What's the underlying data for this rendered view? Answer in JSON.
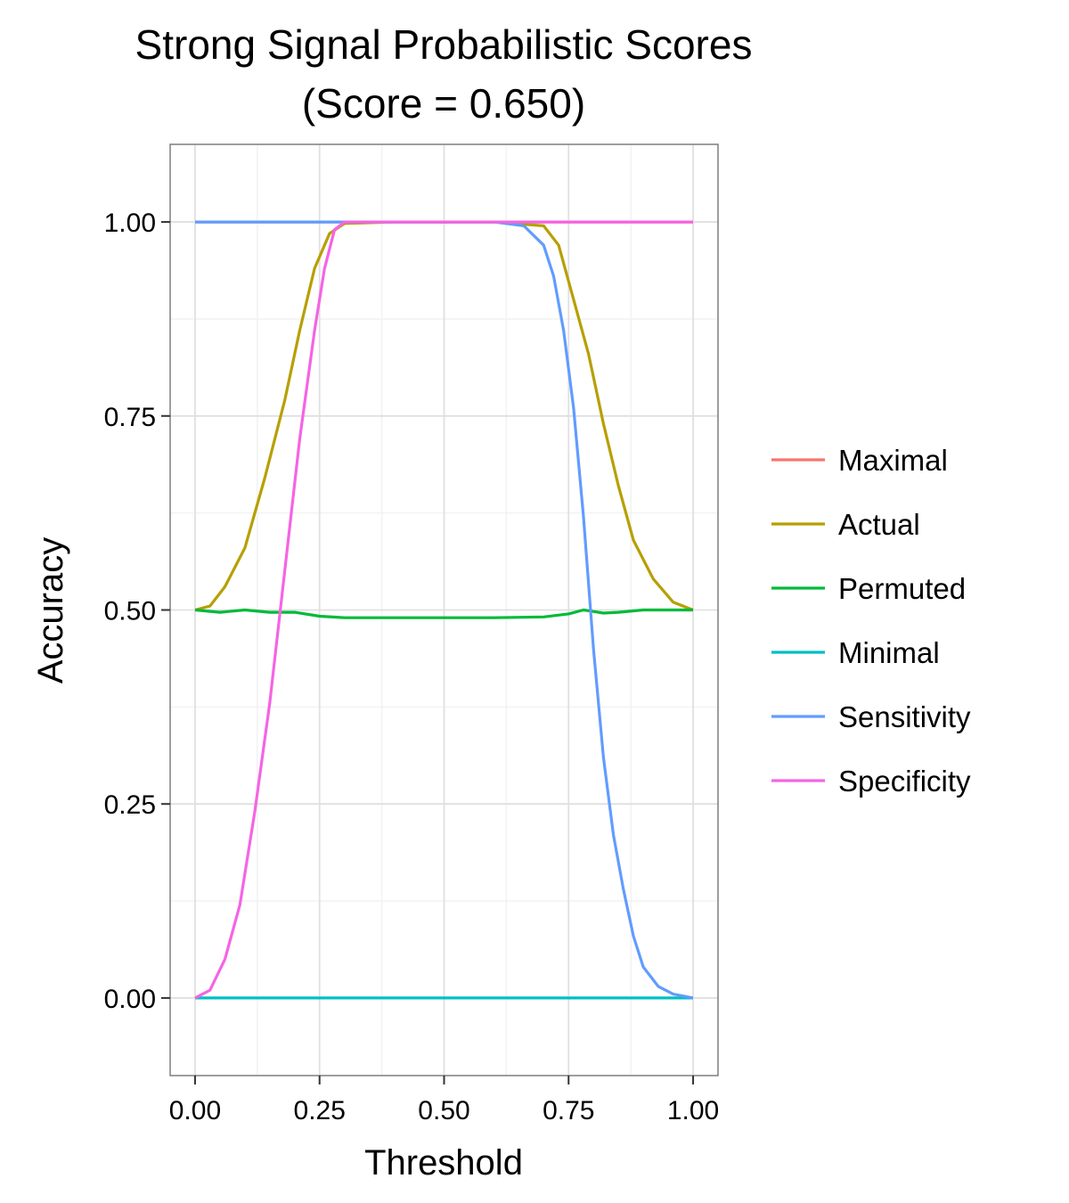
{
  "chart_data": {
    "type": "line",
    "title": "Strong Signal Probabilistic Scores",
    "subtitle": "(Score = 0.650)",
    "xlabel": "Threshold",
    "ylabel": "Accuracy",
    "xlim": [
      -0.05,
      1.05
    ],
    "ylim": [
      -0.1,
      1.1
    ],
    "x_ticks": [
      "0.00",
      "0.25",
      "0.50",
      "0.75",
      "1.00"
    ],
    "y_ticks": [
      "0.00",
      "0.25",
      "0.50",
      "0.75",
      "1.00"
    ],
    "grid": true,
    "legend_position": "right",
    "series": [
      {
        "name": "Maximal",
        "color": "#F8766D",
        "x": [
          0,
          1
        ],
        "y": [
          1,
          1
        ]
      },
      {
        "name": "Actual",
        "color": "#B79F00",
        "x": [
          0,
          0.03,
          0.06,
          0.1,
          0.14,
          0.18,
          0.21,
          0.24,
          0.27,
          0.3,
          0.4,
          0.5,
          0.6,
          0.7,
          0.73,
          0.76,
          0.79,
          0.82,
          0.85,
          0.88,
          0.92,
          0.96,
          1.0
        ],
        "y": [
          0.5,
          0.505,
          0.53,
          0.58,
          0.67,
          0.77,
          0.86,
          0.94,
          0.985,
          0.998,
          1.0,
          1.0,
          1.0,
          0.995,
          0.97,
          0.9,
          0.83,
          0.74,
          0.66,
          0.59,
          0.54,
          0.51,
          0.5
        ]
      },
      {
        "name": "Permuted",
        "color": "#00BA38",
        "x": [
          0,
          0.05,
          0.1,
          0.15,
          0.2,
          0.25,
          0.3,
          0.4,
          0.5,
          0.6,
          0.7,
          0.75,
          0.78,
          0.8,
          0.82,
          0.85,
          0.9,
          0.95,
          1.0
        ],
        "y": [
          0.5,
          0.497,
          0.5,
          0.497,
          0.497,
          0.492,
          0.49,
          0.49,
          0.49,
          0.49,
          0.491,
          0.495,
          0.5,
          0.498,
          0.496,
          0.497,
          0.5,
          0.5,
          0.5
        ]
      },
      {
        "name": "Minimal",
        "color": "#00BFC4",
        "x": [
          0,
          1
        ],
        "y": [
          0,
          0
        ]
      },
      {
        "name": "Sensitivity",
        "color": "#619CFF",
        "x": [
          0,
          0.3,
          0.6,
          0.66,
          0.7,
          0.72,
          0.74,
          0.76,
          0.78,
          0.8,
          0.82,
          0.84,
          0.86,
          0.88,
          0.9,
          0.93,
          0.96,
          1.0
        ],
        "y": [
          1,
          1,
          1,
          0.995,
          0.97,
          0.93,
          0.86,
          0.76,
          0.62,
          0.45,
          0.31,
          0.21,
          0.14,
          0.08,
          0.04,
          0.015,
          0.005,
          0
        ]
      },
      {
        "name": "Specificity",
        "color": "#F564E3",
        "x": [
          0,
          0.03,
          0.06,
          0.09,
          0.12,
          0.15,
          0.18,
          0.21,
          0.24,
          0.26,
          0.28,
          0.3,
          0.35,
          0.5,
          0.7,
          1.0
        ],
        "y": [
          0,
          0.01,
          0.05,
          0.12,
          0.24,
          0.38,
          0.55,
          0.72,
          0.86,
          0.94,
          0.99,
          1.0,
          1.0,
          1.0,
          1.0,
          1.0
        ]
      }
    ]
  }
}
